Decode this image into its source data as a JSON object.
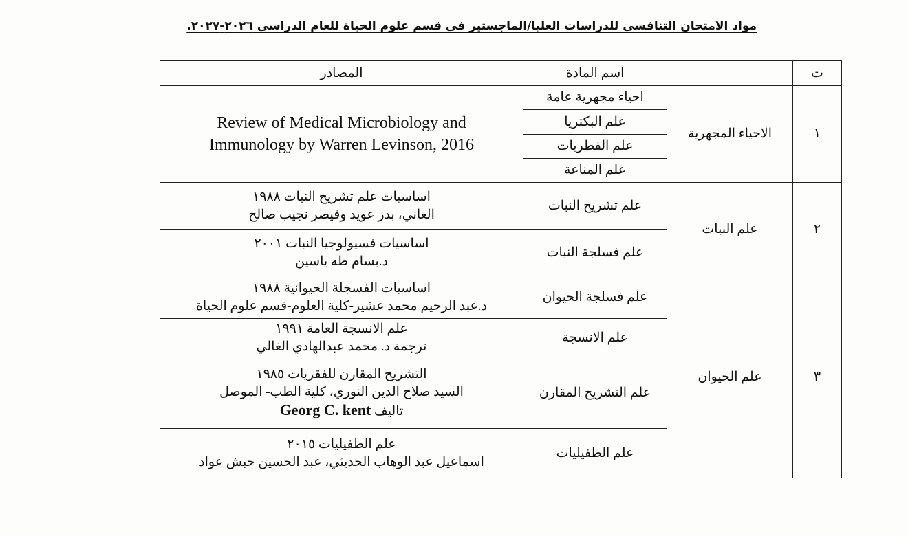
{
  "title": "مواد الامتحان التنافسي للدراسات العليا/الماجستير في قسم علوم الحياة للعام الدراسي ٢٠٢٦-٢٠٢٧.",
  "headers": {
    "number": "ت",
    "department": "",
    "subject": "اسم المادة",
    "sources": "المصادر"
  },
  "groups": [
    {
      "number": "١",
      "department": "الاحياء المجهرية",
      "subjects": [
        "احياء مجهرية عامة",
        "علم البكتريا",
        "علم الفطريات",
        "علم المناعة"
      ],
      "source": [
        "Review of Medical Microbiology and",
        "Immunology by Warren Levinson, 2016"
      ]
    },
    {
      "number": "٢",
      "department": "علم النبات",
      "items": [
        {
          "subject": "علم تشريح النبات",
          "source": [
            "اساسيات علم تشريح النبات ١٩٨٨",
            "العاني، بدر عويد وقيصر نجيب صالح"
          ]
        },
        {
          "subject": "علم فسلجة النبات",
          "source": [
            "اساسيات فسيولوجيا النبات ٢٠٠١",
            "د.بسام طه ياسين"
          ]
        }
      ]
    },
    {
      "number": "٣",
      "department": "علم الحيوان",
      "items": [
        {
          "subject": "علم فسلجة الحيوان",
          "source": [
            "اساسيات الفسجلة الحيوانية ١٩٨٨",
            "د.عبد الرحيم محمد عشير-كلية العلوم-قسم علوم الحياة"
          ]
        },
        {
          "subject": "علم الانسجة",
          "source": [
            "علم الانسجة العامة ١٩٩١",
            "ترجمة د. محمد عبدالهادي الغالي"
          ]
        },
        {
          "subject": "علم التشريح المقارن",
          "source": [
            "التشريح المقارن للفقريات ١٩٨٥",
            "السيد صلاح الدين النوري، كلية الطب- الموصل",
            "تاليف",
            "Georg C. kent"
          ]
        },
        {
          "subject": "علم الطفيليات",
          "source": [
            "علم الطفيليات ٢٠١٥",
            "اسماعيل عبد الوهاب الحديثي، عبد الحسين حبش عواد"
          ]
        }
      ]
    }
  ]
}
